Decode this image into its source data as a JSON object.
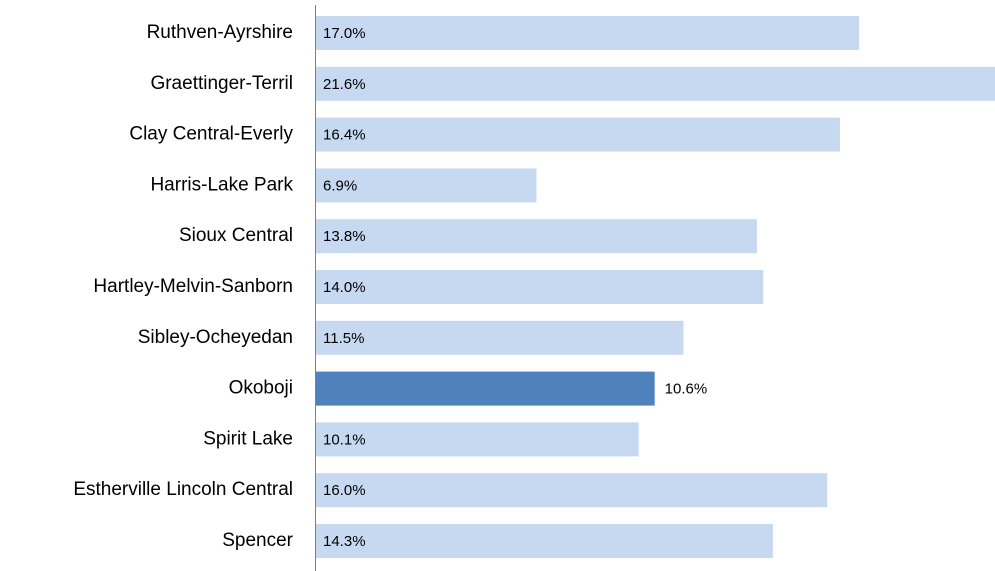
{
  "chart_data": {
    "type": "hbar",
    "categories": [
      "Ruthven-Ayrshire",
      "Graettinger-Terril",
      "Clay Central-Everly",
      "Harris-Lake Park",
      "Sioux Central",
      "Hartley-Melvin-Sanborn",
      "Sibley-Ocheyedan",
      "Okoboji",
      "Spirit Lake",
      "Estherville Lincoln Central",
      "Spencer"
    ],
    "values": [
      17.0,
      21.6,
      16.4,
      6.9,
      13.8,
      14.0,
      11.5,
      10.6,
      10.1,
      16.0,
      14.3
    ],
    "value_labels": [
      "17.0%",
      "21.6%",
      "16.4%",
      "6.9%",
      "13.8%",
      "14.0%",
      "11.5%",
      "10.6%",
      "10.1%",
      "16.0%",
      "14.3%"
    ],
    "colors": [
      "#c6d9f1",
      "#c6d9f1",
      "#c6d9f1",
      "#c6d9f1",
      "#c6d9f1",
      "#c6d9f1",
      "#c6d9f1",
      "#4f81bd",
      "#c6d9f1",
      "#c6d9f1",
      "#c6d9f1"
    ]
  }
}
